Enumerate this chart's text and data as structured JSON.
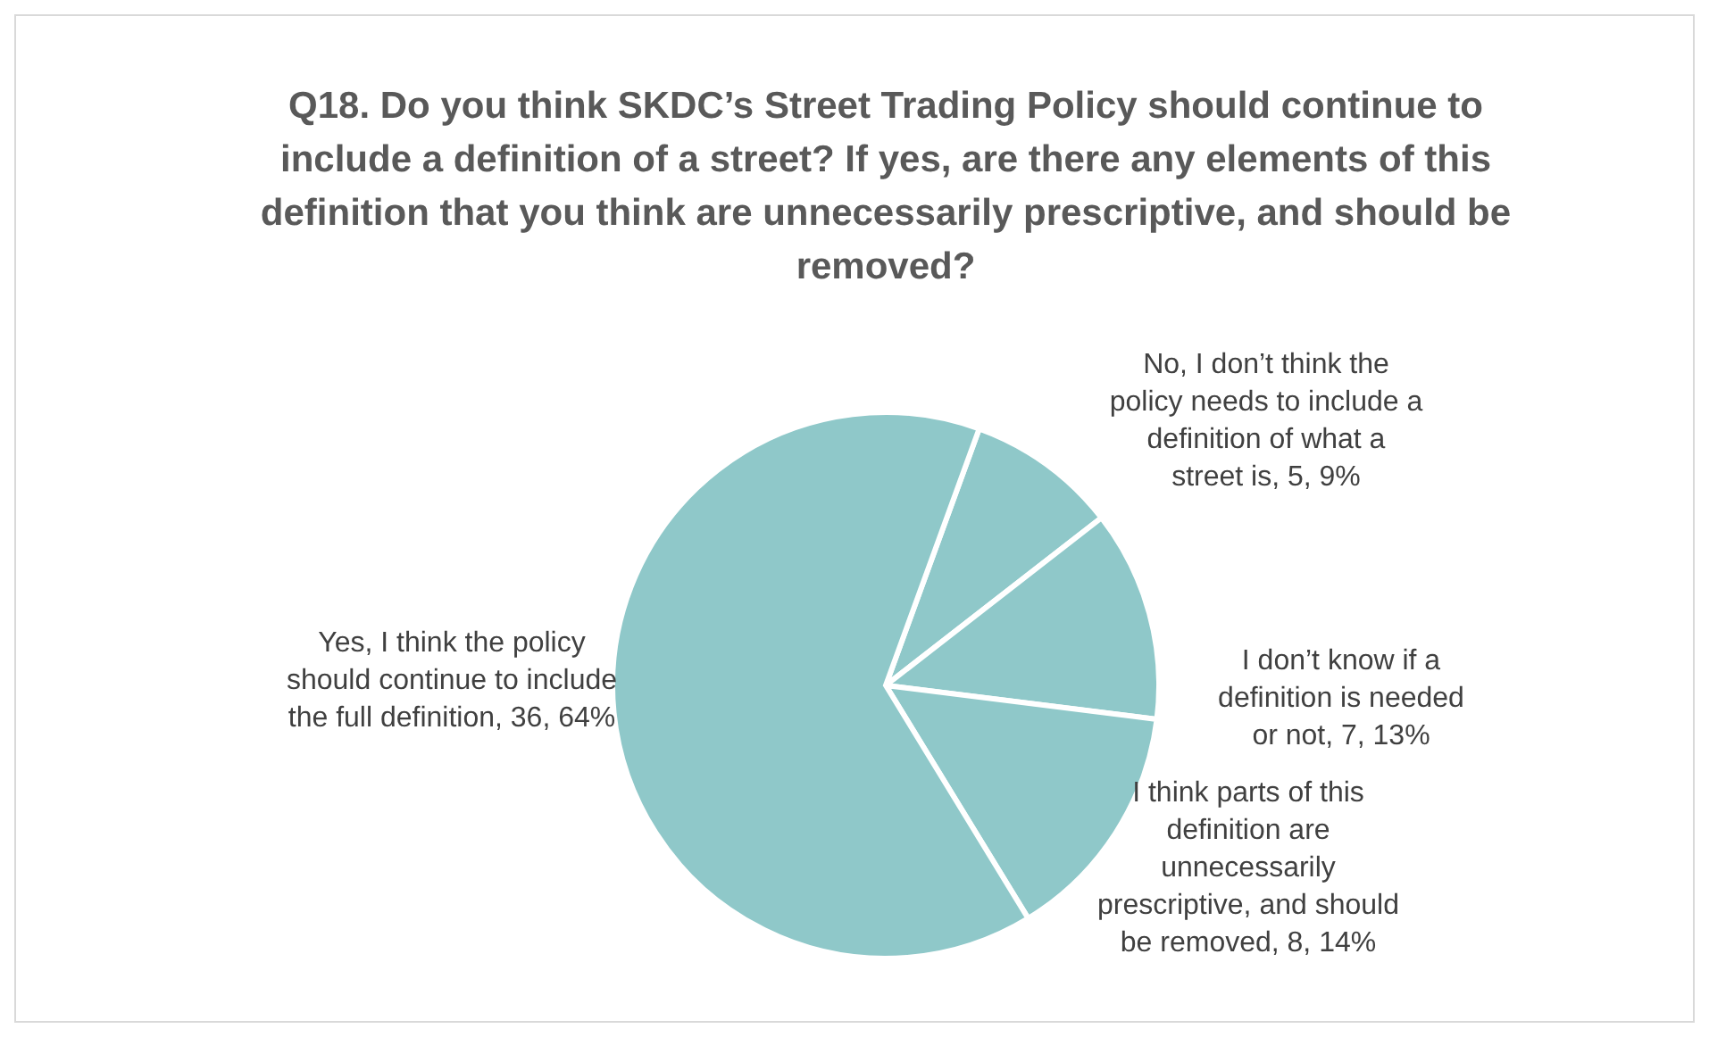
{
  "chart_data": {
    "type": "pie",
    "title": "Q18. Do you think SKDC’s Street Trading Policy should continue to include a definition of a street? If yes, are there any elements of this definition that you think are unnecessarily prescriptive, and should be removed?",
    "categories": [
      "No, I don’t think the policy needs to include a definition of what a street is",
      "I don’t know if a definition is needed or not",
      "I think parts of this definition are unnecessarily prescriptive, and should be removed",
      "Yes, I think the policy should continue to include the full definition"
    ],
    "values": [
      5,
      7,
      8,
      36
    ],
    "value_labels": [
      "5, 9%",
      "7, 13%",
      "8, 14%",
      "36, 64%"
    ],
    "colors": [
      "#8fc8c9",
      "#8fc8c9",
      "#8fc8c9",
      "#8fc8c9"
    ],
    "legend": false
  }
}
